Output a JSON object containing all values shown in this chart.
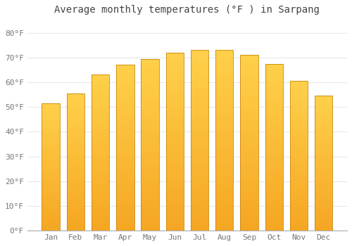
{
  "title": "Average monthly temperatures (°F ) in Sarpang",
  "months": [
    "Jan",
    "Feb",
    "Mar",
    "Apr",
    "May",
    "Jun",
    "Jul",
    "Aug",
    "Sep",
    "Oct",
    "Nov",
    "Dec"
  ],
  "values": [
    51.5,
    55.5,
    63,
    67,
    69.5,
    72,
    73,
    73,
    71,
    67.5,
    60.5,
    54.5
  ],
  "ylim": [
    0,
    85
  ],
  "yticks": [
    0,
    10,
    20,
    30,
    40,
    50,
    60,
    70,
    80
  ],
  "ytick_labels": [
    "0°F",
    "10°F",
    "20°F",
    "30°F",
    "40°F",
    "50°F",
    "60°F",
    "70°F",
    "80°F"
  ],
  "background_color": "#ffffff",
  "grid_color": "#e8e8e8",
  "bar_color_bottom": "#F5A623",
  "bar_color_top": "#FFD04A",
  "bar_edge_color": "#C8860A",
  "title_fontsize": 10,
  "tick_fontsize": 8,
  "bar_width": 0.72
}
